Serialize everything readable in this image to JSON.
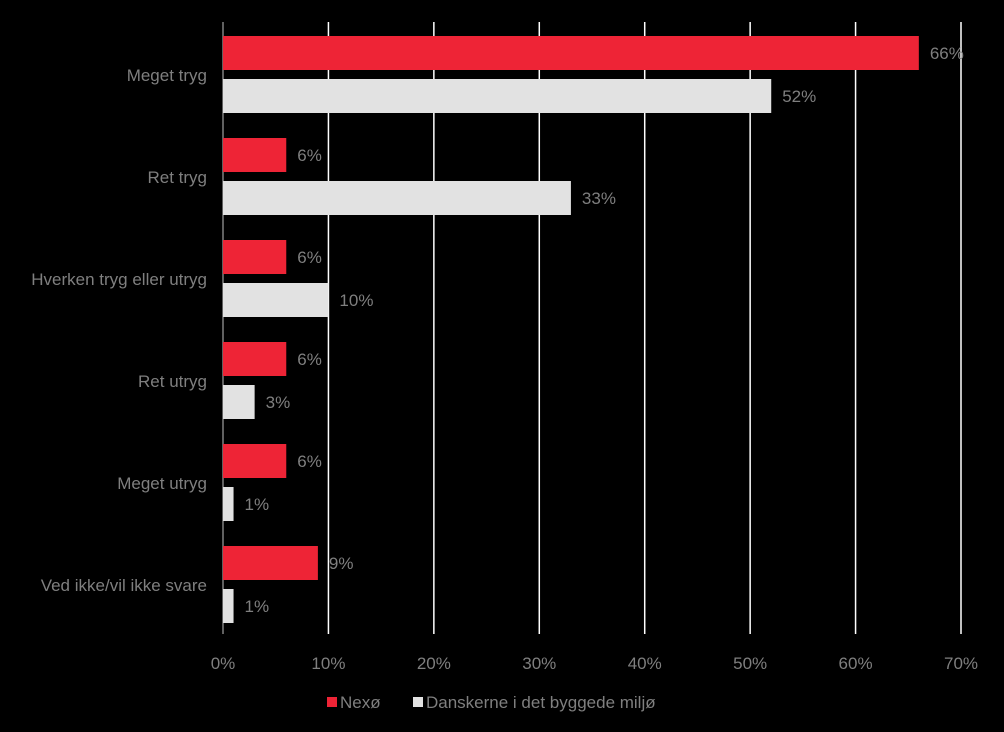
{
  "chart_data": {
    "type": "bar",
    "orientation": "horizontal",
    "categories": [
      "Meget tryg",
      "Ret tryg",
      "Hverken tryg eller utryg",
      "Ret utryg",
      "Meget utryg",
      "Ved ikke/vil ikke svare"
    ],
    "series": [
      {
        "name": "Nexø",
        "color": "#ee2436",
        "values": [
          66,
          6,
          6,
          6,
          6,
          9
        ],
        "labels": [
          "66%",
          "6%",
          "6%",
          "6%",
          "6%",
          "9%"
        ]
      },
      {
        "name": "Danskerne i det byggede miljø",
        "color": "#e2e2e2",
        "values": [
          52,
          33,
          10,
          3,
          1,
          1
        ],
        "labels": [
          "52%",
          "33%",
          "10%",
          "3%",
          "1%",
          "1%"
        ]
      }
    ],
    "xlim": [
      0,
      70
    ],
    "xticks": [
      0,
      10,
      20,
      30,
      40,
      50,
      60,
      70
    ],
    "xtick_labels": [
      "0%",
      "10%",
      "20%",
      "30%",
      "40%",
      "50%",
      "60%",
      "70%"
    ],
    "grid": true,
    "legend_position": "bottom",
    "background": "#000000",
    "text_color": "#7f7f7f"
  }
}
